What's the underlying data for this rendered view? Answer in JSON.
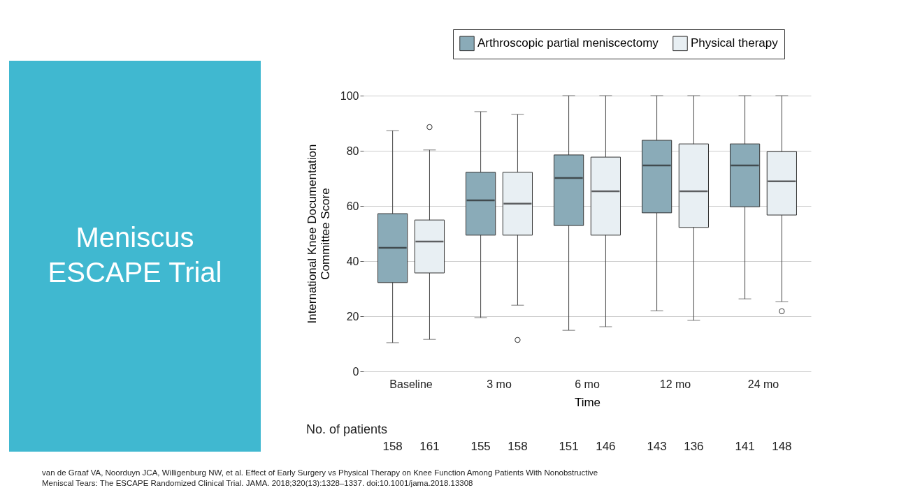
{
  "chart_data": {
    "type": "box",
    "title": "Meniscus ESCAPE Trial",
    "xlabel": "Time",
    "ylabel": "International Knee Documentation Committee Score",
    "categories": [
      "Baseline",
      "3 mo",
      "6 mo",
      "12 mo",
      "24 mo"
    ],
    "series": [
      {
        "name": "Arthroscopic partial meniscectomy",
        "color": "#8aabb8",
        "boxes": [
          {
            "low": 10.4,
            "q1": 32.2,
            "median": 44.8,
            "q3": 57.2,
            "high": 87.3
          },
          {
            "low": 19.5,
            "q1": 49.4,
            "median": 62,
            "q3": 72.2,
            "high": 94.2
          },
          {
            "low": 14.9,
            "q1": 52.9,
            "median": 70.1,
            "q3": 78.5,
            "high": 100
          },
          {
            "low": 22,
            "q1": 57.5,
            "median": 74.7,
            "q3": 83.8,
            "high": 100
          },
          {
            "low": 26.3,
            "q1": 59.7,
            "median": 74.7,
            "q3": 82.5,
            "high": 100
          }
        ]
      },
      {
        "name": "Physical therapy",
        "color": "#e8eff3",
        "boxes": [
          {
            "low": 11.6,
            "q1": 35.7,
            "median": 47.1,
            "q3": 54.9,
            "high": 80.3,
            "outliers": [
              88.6
            ]
          },
          {
            "low": 24,
            "q1": 49.4,
            "median": 60.8,
            "q3": 72.2,
            "high": 93.2,
            "outliers": [
              11.4
            ]
          },
          {
            "low": 16.2,
            "q1": 49.4,
            "median": 65.3,
            "q3": 77.7,
            "high": 100
          },
          {
            "low": 18.5,
            "q1": 52.2,
            "median": 65.3,
            "q3": 82.5,
            "high": 100
          },
          {
            "low": 25.3,
            "q1": 56.7,
            "median": 68.9,
            "q3": 79.7,
            "high": 100,
            "outliers": [
              21.8
            ]
          }
        ]
      }
    ],
    "ylim": [
      0,
      100
    ],
    "yticks": [
      0,
      20,
      40,
      60,
      80,
      100
    ],
    "grid": "y",
    "legend": "top right",
    "annotations": [
      "No. of patients",
      "158",
      "161",
      "155",
      "158",
      "151",
      "146",
      "143",
      "136",
      "141",
      "148",
      "van de Graaf VA, Noorduyn JCA, Willigenburg NW, et al. Effect of Early Surgery vs Physical Therapy on Knee Function Among Patients With Nonobstructive Meniscal Tears: The ESCAPE Randomized Clinical Trial. JAMA. 2018;320(13):1328–1337. doi:10.1001/jama.2018.13308"
    ]
  }
}
